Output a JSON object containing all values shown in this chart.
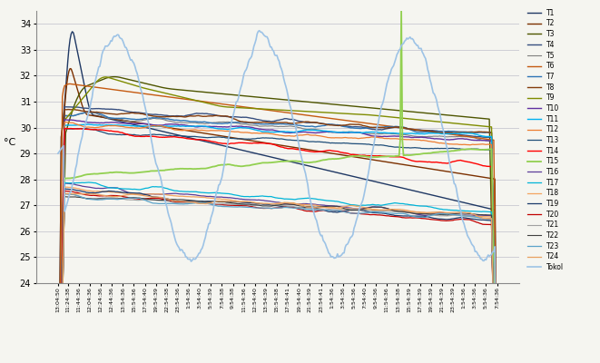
{
  "ylabel": "°C",
  "ylim": [
    24,
    34.5
  ],
  "yticks": [
    24,
    25,
    26,
    27,
    28,
    29,
    30,
    31,
    32,
    33,
    34
  ],
  "bg_color": "#f5f5f0",
  "grid_color": "#c8c8d0",
  "time_labels": [
    "13:04:50",
    "11:24:38",
    "11:44:36",
    "12:04:36",
    "12:24:36",
    "12:44:36",
    "13:54:36",
    "15:54:36",
    "17:54:40",
    "19:54:39",
    "22:54:38",
    "23:54:36",
    "1:54:36",
    "3:54:40",
    "5:54:39",
    "7:54:38",
    "9:54:38",
    "11:54:36",
    "12:54:40",
    "13:54:39",
    "15:54:38",
    "17:54:41",
    "19:54:40",
    "21:54:39",
    "23:54:41",
    "1:54:36",
    "3:54:36",
    "5:54:36",
    "7:54:40",
    "9:54:36",
    "11:54:36",
    "13:54:38",
    "15:54:39",
    "17:54:39",
    "19:54:39",
    "21:54:39",
    "23:54:39",
    "1:54:36",
    "3:54:36",
    "5:54:36",
    "7:54:36"
  ]
}
